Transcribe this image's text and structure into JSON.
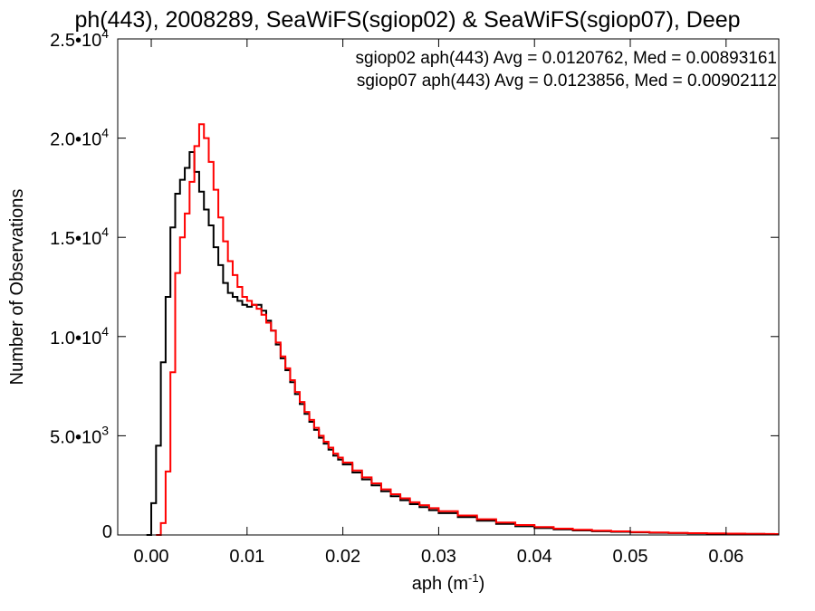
{
  "chart_data": {
    "type": "line",
    "title": "ph(443), 2008289, SeaWiFS(sgiop02) & SeaWiFS(sgiop07), Deep",
    "xlabel": "aph (m",
    "xlabel_sup": "-1",
    "xlabel_end": ")",
    "ylabel": "Number of Observations",
    "xlim": [
      -0.0035,
      0.0655
    ],
    "ylim": [
      0,
      25000
    ],
    "x_ticks": [
      {
        "value": 0.0,
        "label": "0.00"
      },
      {
        "value": 0.01,
        "label": "0.01"
      },
      {
        "value": 0.02,
        "label": "0.02"
      },
      {
        "value": 0.03,
        "label": "0.03"
      },
      {
        "value": 0.04,
        "label": "0.04"
      },
      {
        "value": 0.05,
        "label": "0.05"
      },
      {
        "value": 0.06,
        "label": "0.06"
      }
    ],
    "y_ticks": [
      {
        "value": 0,
        "mantissa": "0",
        "exp": ""
      },
      {
        "value": 5000,
        "mantissa": "5.0•10",
        "exp": "3"
      },
      {
        "value": 10000,
        "mantissa": "1.0•10",
        "exp": "4"
      },
      {
        "value": 15000,
        "mantissa": "1.5•10",
        "exp": "4"
      },
      {
        "value": 20000,
        "mantissa": "2.0•10",
        "exp": "4"
      },
      {
        "value": 25000,
        "mantissa": "2.5•10",
        "exp": "4"
      }
    ],
    "grid": false,
    "legend_position": "top-right",
    "series": [
      {
        "legend": "sgiop02 aph(443) Avg = 0.0120762, Med = 0.00893161",
        "color": "#000000",
        "step": true,
        "points": [
          [
            -0.0005,
            0
          ],
          [
            0.0,
            1600
          ],
          [
            0.0005,
            4500
          ],
          [
            0.001,
            8700
          ],
          [
            0.0015,
            12000
          ],
          [
            0.002,
            15500
          ],
          [
            0.0025,
            17200
          ],
          [
            0.003,
            17900
          ],
          [
            0.0035,
            18500
          ],
          [
            0.004,
            19300
          ],
          [
            0.0045,
            18300
          ],
          [
            0.005,
            17300
          ],
          [
            0.0055,
            16400
          ],
          [
            0.006,
            15600
          ],
          [
            0.0065,
            14500
          ],
          [
            0.007,
            13600
          ],
          [
            0.0075,
            12700
          ],
          [
            0.008,
            12200
          ],
          [
            0.0085,
            12000
          ],
          [
            0.009,
            11800
          ],
          [
            0.0095,
            11600
          ],
          [
            0.01,
            11500
          ],
          [
            0.0105,
            11600
          ],
          [
            0.011,
            11600
          ],
          [
            0.0115,
            11300
          ],
          [
            0.012,
            10800
          ],
          [
            0.0125,
            10300
          ],
          [
            0.013,
            9600
          ],
          [
            0.0135,
            8900
          ],
          [
            0.014,
            8300
          ],
          [
            0.0145,
            7700
          ],
          [
            0.015,
            7100
          ],
          [
            0.0155,
            6600
          ],
          [
            0.016,
            6100
          ],
          [
            0.0165,
            5700
          ],
          [
            0.017,
            5300
          ],
          [
            0.0175,
            4900
          ],
          [
            0.018,
            4600
          ],
          [
            0.0185,
            4300
          ],
          [
            0.019,
            4000
          ],
          [
            0.0195,
            3800
          ],
          [
            0.02,
            3550
          ],
          [
            0.021,
            3150
          ],
          [
            0.022,
            2800
          ],
          [
            0.023,
            2500
          ],
          [
            0.024,
            2200
          ],
          [
            0.025,
            1950
          ],
          [
            0.026,
            1750
          ],
          [
            0.027,
            1550
          ],
          [
            0.028,
            1400
          ],
          [
            0.029,
            1250
          ],
          [
            0.03,
            1100
          ],
          [
            0.032,
            900
          ],
          [
            0.034,
            720
          ],
          [
            0.036,
            560
          ],
          [
            0.038,
            440
          ],
          [
            0.04,
            350
          ],
          [
            0.042,
            280
          ],
          [
            0.044,
            230
          ],
          [
            0.046,
            190
          ],
          [
            0.048,
            160
          ],
          [
            0.05,
            130
          ],
          [
            0.052,
            110
          ],
          [
            0.054,
            95
          ],
          [
            0.056,
            80
          ],
          [
            0.058,
            70
          ],
          [
            0.06,
            60
          ],
          [
            0.062,
            50
          ],
          [
            0.064,
            45
          ],
          [
            0.065,
            40
          ]
        ]
      },
      {
        "legend": "sgiop07 aph(443) Avg = 0.0123856, Med = 0.00902112",
        "color": "#ff0000",
        "step": true,
        "points": [
          [
            0.0005,
            0
          ],
          [
            0.001,
            600
          ],
          [
            0.0015,
            3200
          ],
          [
            0.002,
            8200
          ],
          [
            0.0025,
            13200
          ],
          [
            0.003,
            15000
          ],
          [
            0.0035,
            16200
          ],
          [
            0.004,
            17800
          ],
          [
            0.0045,
            19600
          ],
          [
            0.005,
            20700
          ],
          [
            0.0055,
            20000
          ],
          [
            0.006,
            18800
          ],
          [
            0.0065,
            17400
          ],
          [
            0.007,
            16000
          ],
          [
            0.0075,
            14800
          ],
          [
            0.008,
            13800
          ],
          [
            0.0085,
            13100
          ],
          [
            0.009,
            12500
          ],
          [
            0.0095,
            12000
          ],
          [
            0.01,
            11800
          ],
          [
            0.0105,
            11600
          ],
          [
            0.011,
            11400
          ],
          [
            0.0115,
            11100
          ],
          [
            0.012,
            10700
          ],
          [
            0.0125,
            10300
          ],
          [
            0.013,
            9700
          ],
          [
            0.0135,
            9000
          ],
          [
            0.014,
            8400
          ],
          [
            0.0145,
            7800
          ],
          [
            0.015,
            7200
          ],
          [
            0.0155,
            6700
          ],
          [
            0.016,
            6200
          ],
          [
            0.0165,
            5800
          ],
          [
            0.017,
            5400
          ],
          [
            0.0175,
            5000
          ],
          [
            0.018,
            4700
          ],
          [
            0.0185,
            4400
          ],
          [
            0.019,
            4100
          ],
          [
            0.0195,
            3900
          ],
          [
            0.02,
            3650
          ],
          [
            0.021,
            3250
          ],
          [
            0.022,
            2900
          ],
          [
            0.023,
            2600
          ],
          [
            0.024,
            2300
          ],
          [
            0.025,
            2050
          ],
          [
            0.026,
            1850
          ],
          [
            0.027,
            1650
          ],
          [
            0.028,
            1500
          ],
          [
            0.029,
            1350
          ],
          [
            0.03,
            1200
          ],
          [
            0.032,
            980
          ],
          [
            0.034,
            790
          ],
          [
            0.036,
            630
          ],
          [
            0.038,
            500
          ],
          [
            0.04,
            400
          ],
          [
            0.042,
            320
          ],
          [
            0.044,
            260
          ],
          [
            0.046,
            215
          ],
          [
            0.048,
            180
          ],
          [
            0.05,
            150
          ],
          [
            0.052,
            125
          ],
          [
            0.054,
            105
          ],
          [
            0.056,
            90
          ],
          [
            0.058,
            78
          ],
          [
            0.06,
            68
          ],
          [
            0.062,
            58
          ],
          [
            0.064,
            50
          ],
          [
            0.065,
            45
          ]
        ]
      }
    ]
  }
}
